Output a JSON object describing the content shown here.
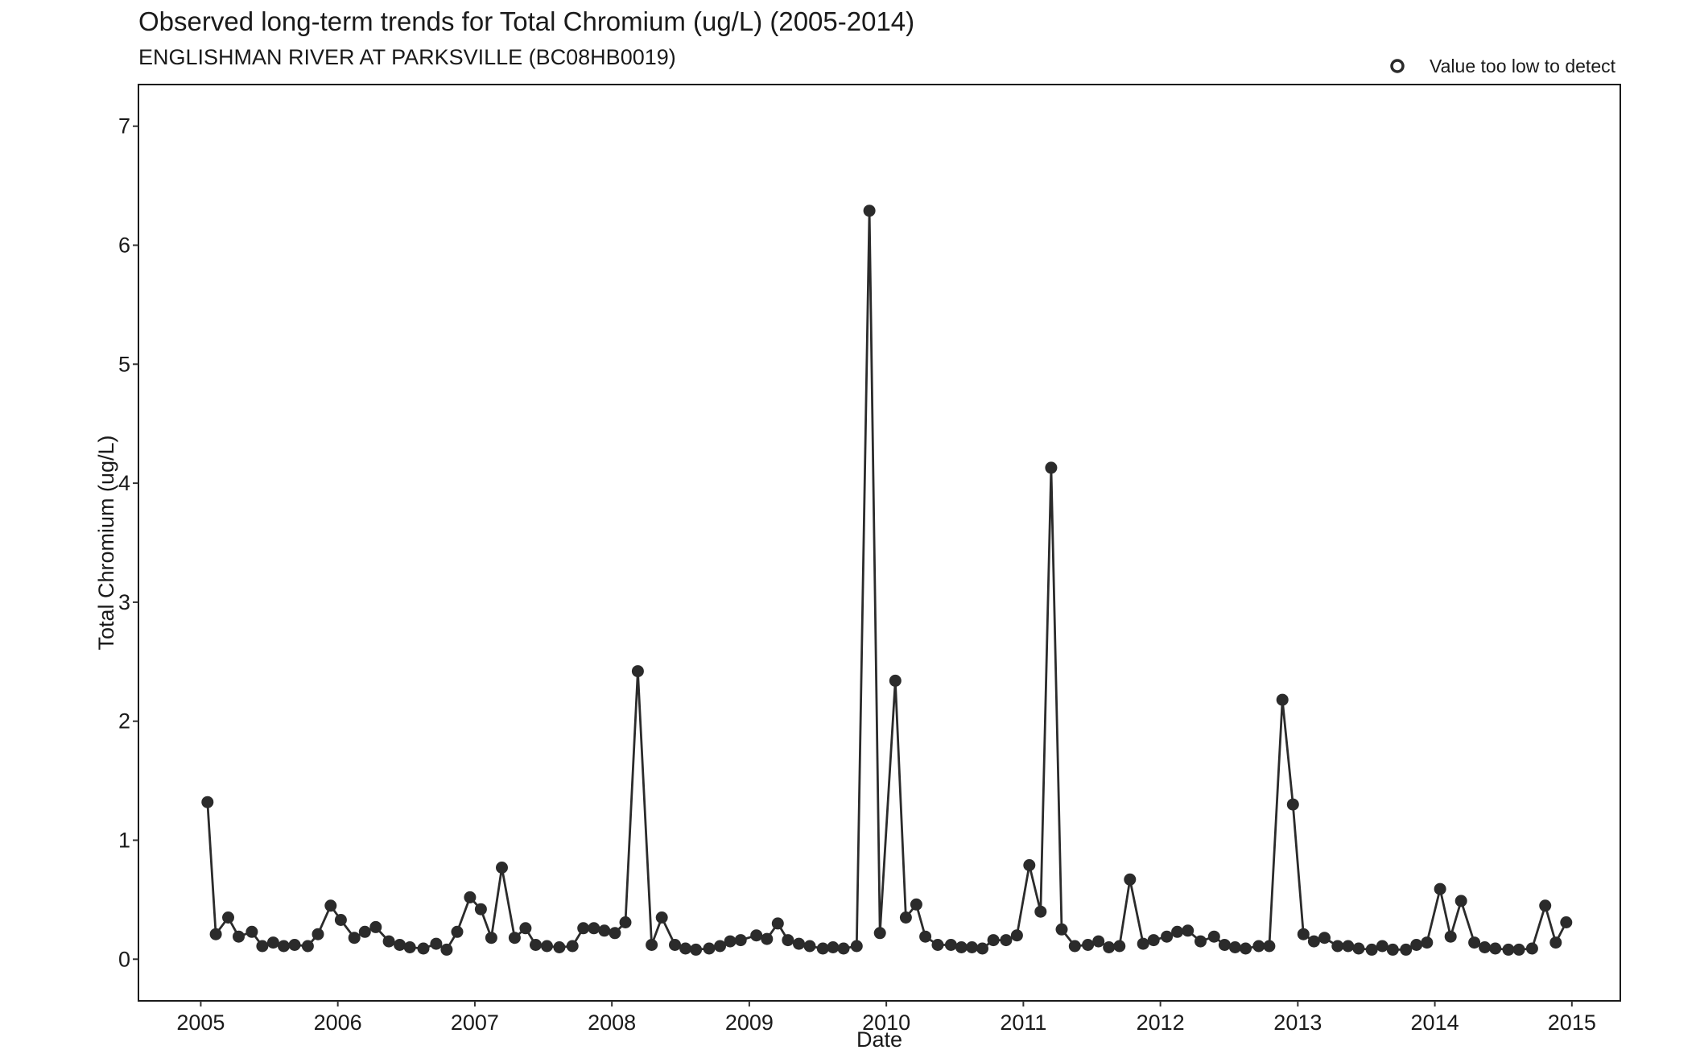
{
  "chart_data": {
    "type": "line",
    "title": "Observed long-term trends for Total Chromium (ug/L) (2005-2014)",
    "subtitle": "ENGLISHMAN RIVER AT PARKSVILLE (BC08HB0019)",
    "xlabel": "Date",
    "ylabel": "Total Chromium (ug/L)",
    "xlim": [
      "2004-07-19",
      "2015-05-10"
    ],
    "ylim": [
      -0.35,
      7.35
    ],
    "x_ticks": [
      "2005",
      "2006",
      "2007",
      "2008",
      "2009",
      "2010",
      "2011",
      "2012",
      "2013",
      "2014",
      "2015"
    ],
    "y_ticks": [
      "0",
      "1",
      "2",
      "3",
      "4",
      "5",
      "6",
      "7"
    ],
    "grid": false,
    "legend": {
      "position": "top-right",
      "entries": [
        {
          "label": "Value too low to detect",
          "marker": "open-circle"
        }
      ]
    },
    "colors": {
      "series": "#2b2b2b"
    },
    "series": [
      {
        "points": [
          {
            "x": "2005-01-19",
            "y": 1.32
          },
          {
            "x": "2005-02-10",
            "y": 0.21
          },
          {
            "x": "2005-03-15",
            "y": 0.35
          },
          {
            "x": "2005-04-12",
            "y": 0.19
          },
          {
            "x": "2005-05-17",
            "y": 0.23
          },
          {
            "x": "2005-06-14",
            "y": 0.11
          },
          {
            "x": "2005-07-13",
            "y": 0.14
          },
          {
            "x": "2005-08-10",
            "y": 0.11
          },
          {
            "x": "2005-09-08",
            "y": 0.12
          },
          {
            "x": "2005-10-13",
            "y": 0.11
          },
          {
            "x": "2005-11-09",
            "y": 0.21
          },
          {
            "x": "2005-12-13",
            "y": 0.45
          },
          {
            "x": "2006-01-09",
            "y": 0.33
          },
          {
            "x": "2006-02-14",
            "y": 0.18
          },
          {
            "x": "2006-03-14",
            "y": 0.23
          },
          {
            "x": "2006-04-12",
            "y": 0.27
          },
          {
            "x": "2006-05-17",
            "y": 0.15
          },
          {
            "x": "2006-06-15",
            "y": 0.12
          },
          {
            "x": "2006-07-12",
            "y": 0.1
          },
          {
            "x": "2006-08-17",
            "y": 0.09
          },
          {
            "x": "2006-09-20",
            "y": 0.13
          },
          {
            "x": "2006-10-18",
            "y": 0.08
          },
          {
            "x": "2006-11-15",
            "y": 0.23
          },
          {
            "x": "2006-12-19",
            "y": 0.52
          },
          {
            "x": "2007-01-17",
            "y": 0.42
          },
          {
            "x": "2007-02-14",
            "y": 0.18
          },
          {
            "x": "2007-03-14",
            "y": 0.77
          },
          {
            "x": "2007-04-17",
            "y": 0.18
          },
          {
            "x": "2007-05-16",
            "y": 0.26
          },
          {
            "x": "2007-06-12",
            "y": 0.12
          },
          {
            "x": "2007-07-12",
            "y": 0.11
          },
          {
            "x": "2007-08-14",
            "y": 0.1
          },
          {
            "x": "2007-09-18",
            "y": 0.11
          },
          {
            "x": "2007-10-17",
            "y": 0.26
          },
          {
            "x": "2007-11-14",
            "y": 0.26
          },
          {
            "x": "2007-12-12",
            "y": 0.24
          },
          {
            "x": "2008-01-09",
            "y": 0.22
          },
          {
            "x": "2008-02-06",
            "y": 0.31
          },
          {
            "x": "2008-03-10",
            "y": 2.42
          },
          {
            "x": "2008-04-16",
            "y": 0.12
          },
          {
            "x": "2008-05-13",
            "y": 0.35
          },
          {
            "x": "2008-06-17",
            "y": 0.12
          },
          {
            "x": "2008-07-15",
            "y": 0.09
          },
          {
            "x": "2008-08-12",
            "y": 0.08
          },
          {
            "x": "2008-09-16",
            "y": 0.09
          },
          {
            "x": "2008-10-15",
            "y": 0.11
          },
          {
            "x": "2008-11-11",
            "y": 0.15
          },
          {
            "x": "2008-12-09",
            "y": 0.16
          },
          {
            "x": "2009-01-20",
            "y": 0.2
          },
          {
            "x": "2009-02-17",
            "y": 0.17
          },
          {
            "x": "2009-03-18",
            "y": 0.3
          },
          {
            "x": "2009-04-14",
            "y": 0.16
          },
          {
            "x": "2009-05-13",
            "y": 0.13
          },
          {
            "x": "2009-06-11",
            "y": 0.11
          },
          {
            "x": "2009-07-16",
            "y": 0.09
          },
          {
            "x": "2009-08-12",
            "y": 0.1
          },
          {
            "x": "2009-09-09",
            "y": 0.09
          },
          {
            "x": "2009-10-14",
            "y": 0.11
          },
          {
            "x": "2009-11-17",
            "y": 6.29
          },
          {
            "x": "2009-12-15",
            "y": 0.22
          },
          {
            "x": "2010-01-25",
            "y": 2.34
          },
          {
            "x": "2010-02-22",
            "y": 0.35
          },
          {
            "x": "2010-03-22",
            "y": 0.46
          },
          {
            "x": "2010-04-15",
            "y": 0.19
          },
          {
            "x": "2010-05-18",
            "y": 0.12
          },
          {
            "x": "2010-06-22",
            "y": 0.12
          },
          {
            "x": "2010-07-20",
            "y": 0.1
          },
          {
            "x": "2010-08-17",
            "y": 0.1
          },
          {
            "x": "2010-09-14",
            "y": 0.09
          },
          {
            "x": "2010-10-13",
            "y": 0.16
          },
          {
            "x": "2010-11-16",
            "y": 0.16
          },
          {
            "x": "2010-12-15",
            "y": 0.2
          },
          {
            "x": "2011-01-17",
            "y": 0.79
          },
          {
            "x": "2011-02-16",
            "y": 0.4
          },
          {
            "x": "2011-03-16",
            "y": 4.13
          },
          {
            "x": "2011-04-13",
            "y": 0.25
          },
          {
            "x": "2011-05-18",
            "y": 0.11
          },
          {
            "x": "2011-06-22",
            "y": 0.12
          },
          {
            "x": "2011-07-20",
            "y": 0.15
          },
          {
            "x": "2011-08-17",
            "y": 0.1
          },
          {
            "x": "2011-09-14",
            "y": 0.11
          },
          {
            "x": "2011-10-12",
            "y": 0.67
          },
          {
            "x": "2011-11-16",
            "y": 0.13
          },
          {
            "x": "2011-12-14",
            "y": 0.16
          },
          {
            "x": "2012-01-18",
            "y": 0.19
          },
          {
            "x": "2012-02-15",
            "y": 0.23
          },
          {
            "x": "2012-03-14",
            "y": 0.24
          },
          {
            "x": "2012-04-17",
            "y": 0.15
          },
          {
            "x": "2012-05-23",
            "y": 0.19
          },
          {
            "x": "2012-06-20",
            "y": 0.12
          },
          {
            "x": "2012-07-18",
            "y": 0.1
          },
          {
            "x": "2012-08-15",
            "y": 0.09
          },
          {
            "x": "2012-09-19",
            "y": 0.11
          },
          {
            "x": "2012-10-17",
            "y": 0.11
          },
          {
            "x": "2012-11-21",
            "y": 2.18
          },
          {
            "x": "2012-12-19",
            "y": 1.3
          },
          {
            "x": "2013-01-16",
            "y": 0.21
          },
          {
            "x": "2013-02-13",
            "y": 0.15
          },
          {
            "x": "2013-03-13",
            "y": 0.18
          },
          {
            "x": "2013-04-17",
            "y": 0.11
          },
          {
            "x": "2013-05-15",
            "y": 0.11
          },
          {
            "x": "2013-06-12",
            "y": 0.09
          },
          {
            "x": "2013-07-17",
            "y": 0.08
          },
          {
            "x": "2013-08-14",
            "y": 0.11
          },
          {
            "x": "2013-09-11",
            "y": 0.08
          },
          {
            "x": "2013-10-16",
            "y": 0.08
          },
          {
            "x": "2013-11-13",
            "y": 0.12
          },
          {
            "x": "2013-12-11",
            "y": 0.14
          },
          {
            "x": "2014-01-15",
            "y": 0.59
          },
          {
            "x": "2014-02-12",
            "y": 0.19
          },
          {
            "x": "2014-03-12",
            "y": 0.49
          },
          {
            "x": "2014-04-16",
            "y": 0.14
          },
          {
            "x": "2014-05-14",
            "y": 0.1
          },
          {
            "x": "2014-06-11",
            "y": 0.09
          },
          {
            "x": "2014-07-16",
            "y": 0.08
          },
          {
            "x": "2014-08-13",
            "y": 0.08
          },
          {
            "x": "2014-09-17",
            "y": 0.09
          },
          {
            "x": "2014-10-22",
            "y": 0.45
          },
          {
            "x": "2014-11-19",
            "y": 0.14
          },
          {
            "x": "2014-12-17",
            "y": 0.31
          }
        ]
      }
    ]
  }
}
